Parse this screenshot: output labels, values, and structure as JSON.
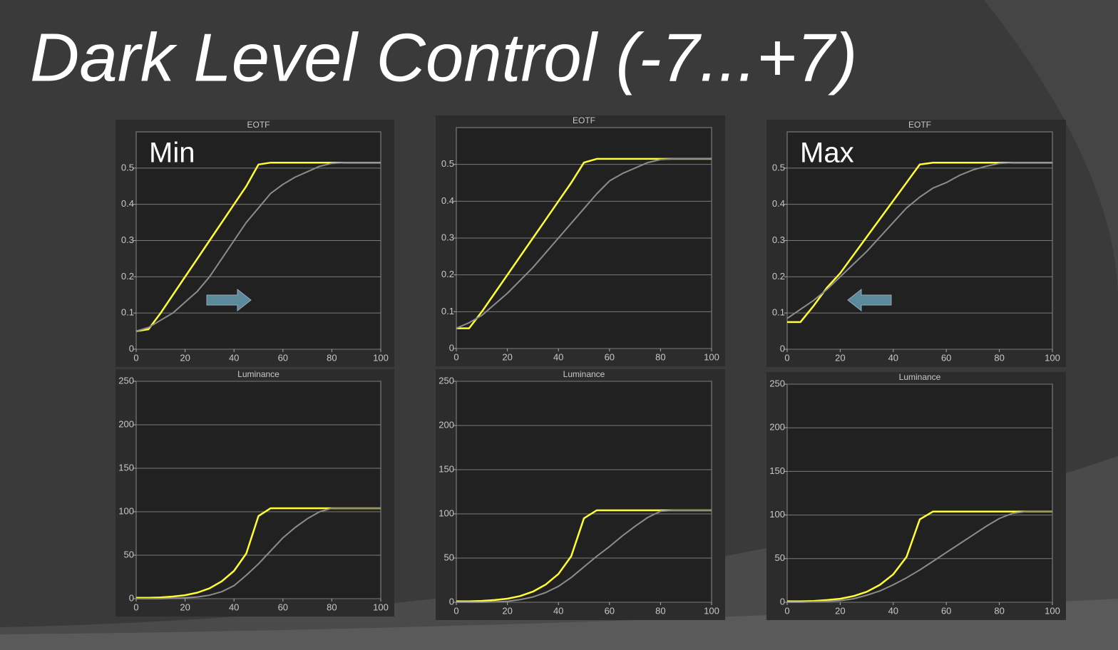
{
  "title": "Dark Level Control (-7...+7)",
  "chart_data": [
    {
      "type": "line",
      "title": "EOTF",
      "annotation": "Min",
      "x": [
        0,
        5,
        10,
        15,
        20,
        25,
        30,
        35,
        40,
        45,
        50,
        55,
        60,
        65,
        70,
        75,
        80,
        85,
        90,
        95,
        100
      ],
      "series": [
        {
          "color": "#ffff33",
          "values": [
            0.05,
            0.055,
            0.1,
            0.15,
            0.2,
            0.25,
            0.3,
            0.35,
            0.4,
            0.45,
            0.51,
            0.515,
            0.515,
            0.515,
            0.515,
            0.515,
            0.515,
            0.515,
            0.515,
            0.515,
            0.515
          ]
        },
        {
          "color": "#8c8c8c",
          "values": [
            0.05,
            0.06,
            0.08,
            0.1,
            0.13,
            0.16,
            0.2,
            0.25,
            0.3,
            0.35,
            0.39,
            0.43,
            0.455,
            0.475,
            0.49,
            0.505,
            0.513,
            0.515,
            0.515,
            0.515,
            0.515
          ]
        }
      ],
      "xlim": [
        0,
        100
      ],
      "xticks": [
        0,
        20,
        40,
        60,
        80,
        100
      ],
      "ylim": [
        0,
        0.6
      ],
      "yticks": [
        0,
        0.1,
        0.2,
        0.3,
        0.4,
        0.5
      ],
      "grid": true
    },
    {
      "type": "line",
      "title": "EOTF",
      "x": [
        0,
        5,
        10,
        15,
        20,
        25,
        30,
        35,
        40,
        45,
        50,
        55,
        60,
        65,
        70,
        75,
        80,
        85,
        90,
        95,
        100
      ],
      "series": [
        {
          "color": "#ffff33",
          "values": [
            0.055,
            0.055,
            0.1,
            0.15,
            0.2,
            0.25,
            0.3,
            0.35,
            0.4,
            0.45,
            0.505,
            0.515,
            0.515,
            0.515,
            0.515,
            0.515,
            0.515,
            0.515,
            0.515,
            0.515,
            0.515
          ]
        },
        {
          "color": "#8c8c8c",
          "values": [
            0.055,
            0.07,
            0.09,
            0.12,
            0.15,
            0.185,
            0.22,
            0.26,
            0.3,
            0.34,
            0.38,
            0.42,
            0.455,
            0.475,
            0.49,
            0.505,
            0.513,
            0.515,
            0.515,
            0.515,
            0.515
          ]
        }
      ],
      "xlim": [
        0,
        100
      ],
      "xticks": [
        0,
        20,
        40,
        60,
        80,
        100
      ],
      "ylim": [
        0,
        0.6
      ],
      "yticks": [
        0,
        0.1,
        0.2,
        0.3,
        0.4,
        0.5
      ],
      "grid": true
    },
    {
      "type": "line",
      "title": "EOTF",
      "annotation": "Max",
      "x": [
        0,
        5,
        10,
        15,
        20,
        25,
        30,
        35,
        40,
        45,
        50,
        55,
        60,
        65,
        70,
        75,
        80,
        85,
        90,
        95,
        100
      ],
      "series": [
        {
          "color": "#ffff33",
          "values": [
            0.075,
            0.075,
            0.12,
            0.17,
            0.21,
            0.26,
            0.31,
            0.36,
            0.41,
            0.46,
            0.51,
            0.515,
            0.515,
            0.515,
            0.515,
            0.515,
            0.515,
            0.515,
            0.515,
            0.515,
            0.515
          ]
        },
        {
          "color": "#8c8c8c",
          "values": [
            0.085,
            0.11,
            0.135,
            0.165,
            0.2,
            0.235,
            0.27,
            0.31,
            0.35,
            0.39,
            0.42,
            0.445,
            0.46,
            0.48,
            0.495,
            0.505,
            0.513,
            0.515,
            0.515,
            0.515,
            0.515
          ]
        }
      ],
      "xlim": [
        0,
        100
      ],
      "xticks": [
        0,
        20,
        40,
        60,
        80,
        100
      ],
      "ylim": [
        0,
        0.6
      ],
      "yticks": [
        0,
        0.1,
        0.2,
        0.3,
        0.4,
        0.5
      ],
      "grid": true
    },
    {
      "type": "line",
      "title": "Luminance",
      "x": [
        0,
        5,
        10,
        15,
        20,
        25,
        30,
        35,
        40,
        45,
        50,
        55,
        60,
        65,
        70,
        75,
        80,
        85,
        90,
        95,
        100
      ],
      "series": [
        {
          "color": "#ffff33",
          "values": [
            1,
            1,
            1.5,
            2.5,
            4,
            7,
            12,
            20,
            32,
            52,
            95,
            104,
            104,
            104,
            104,
            104,
            104,
            104,
            104,
            104,
            104
          ]
        },
        {
          "color": "#8c8c8c",
          "values": [
            0,
            0,
            0,
            0.5,
            1,
            2,
            4,
            8,
            15,
            27,
            40,
            55,
            70,
            82,
            92,
            100,
            104,
            104,
            104,
            104,
            104
          ]
        }
      ],
      "xlim": [
        0,
        100
      ],
      "xticks": [
        0,
        20,
        40,
        60,
        80,
        100
      ],
      "ylim": [
        0,
        250
      ],
      "yticks": [
        0,
        50,
        100,
        150,
        200,
        250
      ],
      "grid": true
    },
    {
      "type": "line",
      "title": "Luminance",
      "x": [
        0,
        5,
        10,
        15,
        20,
        25,
        30,
        35,
        40,
        45,
        50,
        55,
        60,
        65,
        70,
        75,
        80,
        85,
        90,
        95,
        100
      ],
      "series": [
        {
          "color": "#ffff33",
          "values": [
            1,
            1,
            1.5,
            2.5,
            4,
            7,
            12,
            20,
            32,
            52,
            95,
            104,
            104,
            104,
            104,
            104,
            104,
            104,
            104,
            104,
            104
          ]
        },
        {
          "color": "#8c8c8c",
          "values": [
            0,
            0,
            0,
            0.5,
            1,
            3,
            6,
            11,
            18,
            28,
            40,
            52,
            63,
            75,
            86,
            96,
            103,
            104,
            104,
            104,
            104
          ]
        }
      ],
      "xlim": [
        0,
        100
      ],
      "xticks": [
        0,
        20,
        40,
        60,
        80,
        100
      ],
      "ylim": [
        0,
        250
      ],
      "yticks": [
        0,
        50,
        100,
        150,
        200,
        250
      ],
      "grid": true
    },
    {
      "type": "line",
      "title": "Luminance",
      "x": [
        0,
        5,
        10,
        15,
        20,
        25,
        30,
        35,
        40,
        45,
        50,
        55,
        60,
        65,
        70,
        75,
        80,
        85,
        90,
        95,
        100
      ],
      "series": [
        {
          "color": "#ffff33",
          "values": [
            1,
            1,
            1.5,
            2.5,
            4,
            7,
            12,
            20,
            32,
            52,
            95,
            104,
            104,
            104,
            104,
            104,
            104,
            104,
            104,
            104,
            104
          ]
        },
        {
          "color": "#8c8c8c",
          "values": [
            0,
            0,
            0.5,
            1,
            2,
            4,
            8,
            13,
            20,
            28,
            37,
            47,
            57,
            67,
            77,
            87,
            96,
            102,
            104,
            104,
            104
          ]
        }
      ],
      "xlim": [
        0,
        100
      ],
      "xticks": [
        0,
        20,
        40,
        60,
        80,
        100
      ],
      "ylim": [
        0,
        250
      ],
      "yticks": [
        0,
        50,
        100,
        150,
        200,
        250
      ],
      "grid": true
    }
  ]
}
